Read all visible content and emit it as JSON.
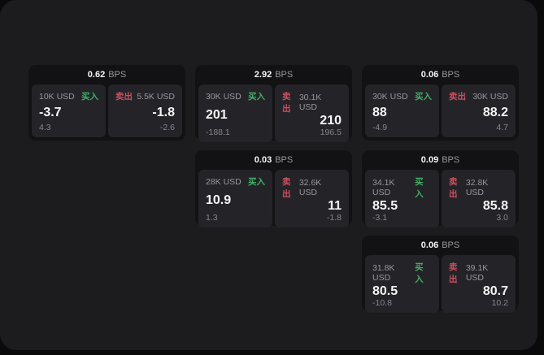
{
  "labels": {
    "bps_unit": "BPS",
    "buy": "买入",
    "sell": "卖出"
  },
  "colors": {
    "page_bg": "#0a0a0b",
    "panel_bg": "#1c1c1e",
    "card_bg": "#121214",
    "tile_bg": "#242428",
    "text_primary": "#f5f5f6",
    "text_secondary": "#97979d",
    "text_tertiary": "#85858b",
    "accent_green": "#3fb065",
    "accent_red": "#cc4f5f"
  },
  "cards": [
    {
      "bps": "0.62",
      "buy": {
        "amount": "10K USD",
        "value": "-3.7",
        "delta": "4.3"
      },
      "sell": {
        "amount": "5.5K USD",
        "value": "-1.8",
        "delta": "-2.6"
      }
    },
    {
      "bps": "2.92",
      "buy": {
        "amount": "30K USD",
        "value": "201",
        "delta": "-188.1"
      },
      "sell": {
        "amount": "30.1K USD",
        "value": "210",
        "delta": "196.5"
      }
    },
    {
      "bps": "0.06",
      "buy": {
        "amount": "30K USD",
        "value": "88",
        "delta": "-4.9"
      },
      "sell": {
        "amount": "30K USD",
        "value": "88.2",
        "delta": "4.7"
      }
    },
    {
      "bps": "0.03",
      "buy": {
        "amount": "28K USD",
        "value": "10.9",
        "delta": "1.3"
      },
      "sell": {
        "amount": "32.6K USD",
        "value": "11",
        "delta": "-1.8"
      }
    },
    {
      "bps": "0.09",
      "buy": {
        "amount": "34.1K USD",
        "value": "85.5",
        "delta": "-3.1"
      },
      "sell": {
        "amount": "32.8K USD",
        "value": "85.8",
        "delta": "3.0"
      }
    },
    {
      "bps": "0.06",
      "buy": {
        "amount": "31.8K USD",
        "value": "80.5",
        "delta": "-10.8"
      },
      "sell": {
        "amount": "39.1K USD",
        "value": "80.7",
        "delta": "10.2"
      }
    }
  ]
}
